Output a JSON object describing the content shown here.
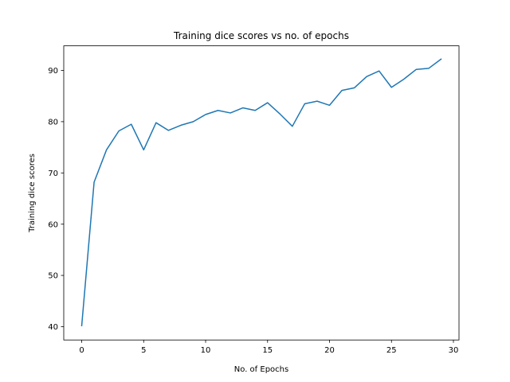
{
  "chart_data": {
    "type": "line",
    "title": "Training dice scores vs no. of epochs",
    "xlabel": "No. of Epochs",
    "ylabel": "Training dice scores",
    "xlim": [
      -1.45,
      30.45
    ],
    "ylim": [
      37.4,
      94.8
    ],
    "xticks": [
      0,
      5,
      10,
      15,
      20,
      25,
      30
    ],
    "yticks": [
      40,
      50,
      60,
      70,
      80,
      90
    ],
    "grid": false,
    "series": [
      {
        "color": "#1f77b4",
        "x": [
          0,
          1,
          2,
          3,
          4,
          5,
          6,
          7,
          8,
          9,
          10,
          11,
          12,
          13,
          14,
          15,
          16,
          17,
          18,
          19,
          20,
          21,
          22,
          23,
          24,
          25,
          26,
          27,
          28,
          29
        ],
        "y": [
          40.2,
          68.2,
          74.5,
          78.2,
          79.5,
          74.5,
          79.8,
          78.3,
          79.3,
          80.0,
          81.4,
          82.2,
          81.7,
          82.7,
          82.2,
          83.7,
          81.5,
          79.1,
          83.5,
          84.0,
          83.2,
          86.1,
          86.6,
          88.8,
          89.9,
          86.7,
          88.3,
          90.2,
          90.4,
          92.2
        ]
      }
    ]
  }
}
